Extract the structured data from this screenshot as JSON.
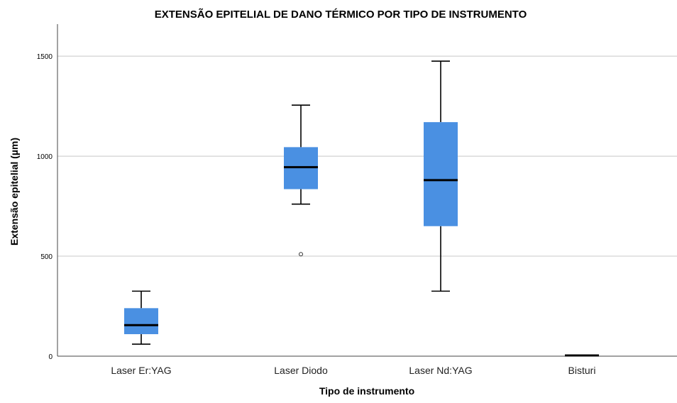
{
  "chart_data": {
    "type": "boxplot",
    "title": "EXTENSÃO EPITELIAL DE DANO TÉRMICO POR TIPO DE INSTRUMENTO",
    "xlabel": "Tipo de instrumento",
    "ylabel": "Extensão epitelial (µm)",
    "ylim": [
      0,
      1660
    ],
    "yticks": [
      0,
      500,
      1000,
      1500
    ],
    "grid": true,
    "box_color": "#4a90e2",
    "categories": [
      "Laser Er:YAG",
      "Laser Diodo",
      "Laser Nd:YAG",
      "Bisturi"
    ],
    "boxes": [
      {
        "min": 60,
        "q1": 110,
        "median": 155,
        "q3": 240,
        "max": 325,
        "outliers": []
      },
      {
        "min": 760,
        "q1": 835,
        "median": 945,
        "q3": 1045,
        "max": 1255,
        "outliers": [
          510
        ]
      },
      {
        "min": 325,
        "q1": 650,
        "median": 880,
        "q3": 1170,
        "max": 1475,
        "outliers": []
      },
      {
        "min": 0,
        "q1": 0,
        "median": 0,
        "q3": 0,
        "max": 0,
        "outliers": []
      }
    ]
  }
}
